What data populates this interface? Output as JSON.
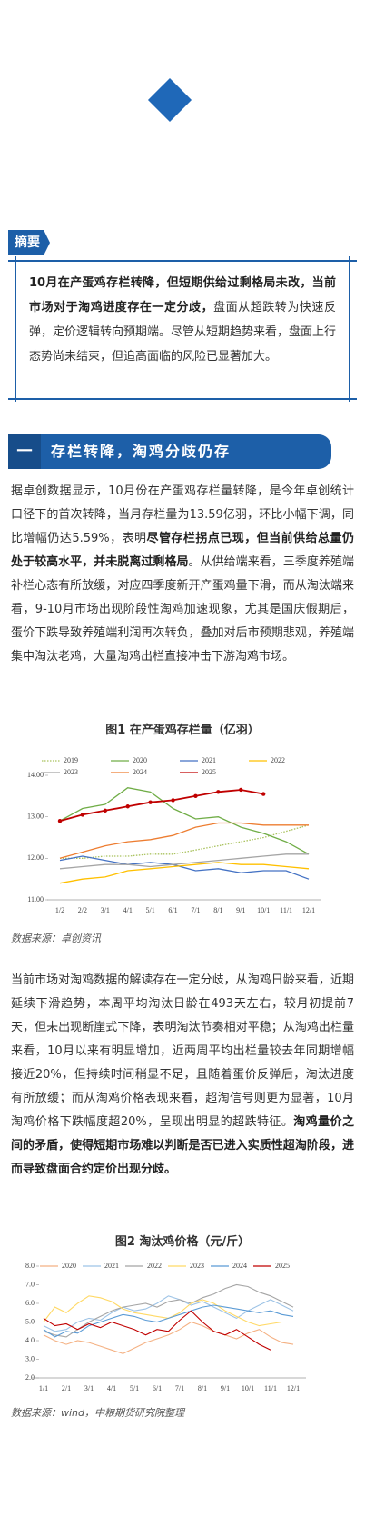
{
  "summary": {
    "tag": "摘要",
    "runs": [
      {
        "text": "10月在产蛋鸡存栏转降，但短期供给过剩格局未改，当前市场对于淘鸡进度存在一定分歧，",
        "bold": true
      },
      {
        "text": "盘面从超跌转为快速反弹，定价逻辑转向预期端。尽管从短期趋势来看，盘面上行态势尚未结束，但追高面临的风险已显著加大。",
        "bold": false
      }
    ]
  },
  "section": {
    "number": "一",
    "title": "存栏转降，淘鸡分歧仍存"
  },
  "paragraphs": [
    [
      {
        "text": "据卓创数据显示，10月份在产蛋鸡存栏量转降，是今年卓创统计口径下的首次转降，当月存栏量为13.59亿羽，环比小幅下调，同比增幅仍达5.59%，表明",
        "bold": false
      },
      {
        "text": "尽管存栏拐点已现，但当前供给总量仍处于较高水平，并未脱离过剩格局",
        "bold": true
      },
      {
        "text": "。从供给端来看，三季度养殖端补栏心态有所放缓，对应四季度新开产蛋鸡量下滑，而从淘汰端来看，9-10月市场出现阶段性淘鸡加速现象，尤其是国庆假期后，蛋价下跌导致养殖端利润再次转负，叠加对后市预期悲观，养殖端集中淘汰老鸡，大量淘鸡出栏直接冲击下游淘鸡市场。",
        "bold": false
      }
    ],
    [
      {
        "text": "当前市场对淘鸡数据的解读存在一定分歧，从淘鸡日龄来看，近期延续下滑趋势，本周平均淘汰日龄在493天左右，较月初提前7天，但未出现断崖式下降，表明淘汰节奏相对平稳；从淘鸡出栏量来看，10月以来有明显增加，近两周平均出栏量较去年同期增幅接近20%，但持续时间稍显不足，且随着蛋价反弹后，淘汰进度有所放缓；而从淘鸡价格表现来看，超淘信号则更为显著，10月淘鸡价格下跌幅度超20%，呈现出明显的超跌特征。",
        "bold": false
      },
      {
        "text": "淘鸡量价之间的矛盾，使得短期市场难以判断是否已进入实质性超淘阶段，进而导致盘面合约定价出现分歧。",
        "bold": true
      }
    ]
  ],
  "chart_data": [
    {
      "type": "line",
      "title": "图1 在产蛋鸡存栏量（亿羽）",
      "source": "数据来源：卓创资讯",
      "categories": [
        "1/2",
        "2/2",
        "3/1",
        "4/1",
        "5/1",
        "6/1",
        "7/1",
        "8/1",
        "9/1",
        "10/1",
        "11/1",
        "12/1"
      ],
      "ylim": [
        11,
        14
      ],
      "yticks": [
        {
          "value": 11,
          "label": "11.00"
        },
        {
          "value": 12,
          "label": "12.00"
        },
        {
          "value": 13,
          "label": "13.00"
        },
        {
          "value": 14,
          "label": "14.00"
        }
      ],
      "series": [
        {
          "name": "2019",
          "color": "#a9c25d",
          "dash": "dotted",
          "values": [
            12.0,
            12.0,
            12.05,
            12.05,
            12.1,
            12.1,
            12.2,
            12.3,
            12.4,
            12.5,
            12.65,
            12.8
          ]
        },
        {
          "name": "2020",
          "color": "#70ad47",
          "values": [
            12.9,
            13.2,
            13.3,
            13.7,
            13.6,
            13.2,
            12.95,
            13.0,
            12.75,
            12.6,
            12.4,
            12.1
          ]
        },
        {
          "name": "2021",
          "color": "#4472c4",
          "values": [
            11.95,
            12.05,
            11.95,
            11.85,
            11.9,
            11.85,
            11.7,
            11.75,
            11.65,
            11.7,
            11.7,
            11.5
          ]
        },
        {
          "name": "2022",
          "color": "#ffc000",
          "values": [
            11.4,
            11.5,
            11.55,
            11.7,
            11.75,
            11.8,
            11.85,
            11.9,
            11.85,
            11.85,
            11.8,
            11.75
          ]
        },
        {
          "name": "2023",
          "color": "#a5a5a5",
          "values": [
            11.75,
            11.8,
            11.85,
            11.85,
            11.8,
            11.85,
            11.9,
            11.95,
            12.0,
            12.05,
            12.1,
            12.1
          ]
        },
        {
          "name": "2024",
          "color": "#ed7d31",
          "values": [
            12.0,
            12.15,
            12.3,
            12.4,
            12.45,
            12.55,
            12.75,
            12.85,
            12.85,
            12.8,
            12.8,
            12.8
          ]
        },
        {
          "name": "2025",
          "color": "#c00000",
          "markers": true,
          "values": [
            12.9,
            13.05,
            13.15,
            13.25,
            13.35,
            13.4,
            13.5,
            13.6,
            13.65,
            13.55,
            null,
            null
          ]
        }
      ]
    },
    {
      "type": "line",
      "title": "图2 淘汰鸡价格（元/斤）",
      "source": "数据来源：wind，中粮期货研究院整理",
      "categories": [
        "1/1",
        null,
        "2/1",
        null,
        "3/1",
        null,
        "4/1",
        null,
        "5/1",
        null,
        "6/1",
        null,
        "7/1",
        null,
        "8/1",
        null,
        "9/1",
        null,
        "10/1",
        null,
        "11/1",
        null,
        "12/1"
      ],
      "ylim": [
        2,
        8
      ],
      "yticks": [
        {
          "value": 2,
          "label": "2.0"
        },
        {
          "value": 3,
          "label": "3.0"
        },
        {
          "value": 4,
          "label": "4.0"
        },
        {
          "value": 5,
          "label": "5.0"
        },
        {
          "value": 6,
          "label": "6.0"
        },
        {
          "value": 7,
          "label": "7.0"
        },
        {
          "value": 8,
          "label": "8.0"
        }
      ],
      "series": [
        {
          "name": "2020",
          "color": "#f4b183",
          "values": [
            4.3,
            4.0,
            3.8,
            4.0,
            3.9,
            3.7,
            3.5,
            3.3,
            3.6,
            3.9,
            4.1,
            4.3,
            4.6,
            5.0,
            4.8,
            4.5,
            4.3,
            4.1,
            4.4,
            4.6,
            4.2,
            3.9,
            3.8
          ]
        },
        {
          "name": "2021",
          "color": "#9dc3e6",
          "values": [
            4.8,
            4.5,
            4.6,
            5.0,
            5.2,
            5.1,
            5.5,
            5.8,
            5.6,
            5.7,
            6.0,
            6.4,
            6.2,
            5.9,
            6.1,
            5.8,
            5.5,
            5.2,
            5.6,
            5.9,
            6.2,
            5.9,
            5.6
          ]
        },
        {
          "name": "2022",
          "color": "#a5a5a5",
          "values": [
            4.5,
            4.3,
            4.2,
            4.6,
            5.0,
            5.3,
            5.6,
            5.8,
            5.9,
            6.0,
            5.8,
            6.1,
            6.2,
            6.0,
            6.3,
            6.5,
            6.8,
            7.0,
            6.9,
            6.6,
            6.4,
            6.1,
            5.8
          ]
        },
        {
          "name": "2023",
          "color": "#ffd966",
          "values": [
            5.0,
            5.8,
            5.5,
            6.0,
            6.4,
            6.3,
            6.1,
            5.7,
            5.5,
            5.4,
            5.3,
            5.2,
            5.5,
            6.0,
            6.2,
            6.0,
            5.6,
            5.3,
            5.0,
            4.8,
            4.9,
            5.0,
            5.0
          ]
        },
        {
          "name": "2024",
          "color": "#5b9bd5",
          "values": [
            4.6,
            4.2,
            4.5,
            4.4,
            4.8,
            5.0,
            5.2,
            5.4,
            5.3,
            5.1,
            5.0,
            5.2,
            5.4,
            5.6,
            5.8,
            5.9,
            5.8,
            5.7,
            5.6,
            5.5,
            5.6,
            5.4,
            5.3
          ]
        },
        {
          "name": "2025",
          "color": "#c00000",
          "values": [
            5.2,
            4.8,
            4.9,
            4.6,
            4.9,
            4.7,
            5.0,
            4.8,
            4.6,
            4.3,
            4.6,
            4.5,
            5.1,
            5.6,
            5.0,
            4.5,
            4.3,
            4.6,
            4.2,
            3.8,
            3.5,
            null,
            null
          ]
        }
      ]
    }
  ]
}
